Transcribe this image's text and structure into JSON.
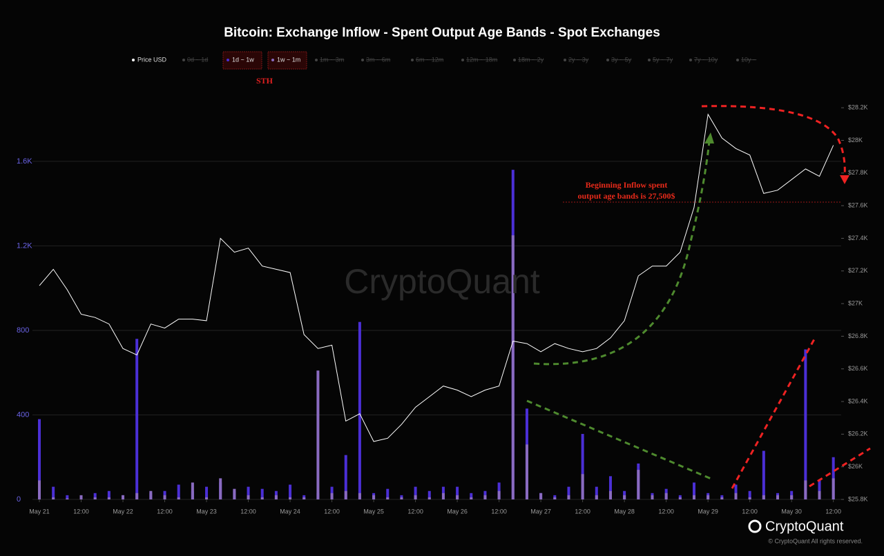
{
  "chart_data": {
    "type": "bar",
    "title": "Bitcoin: Exchange Inflow - Spent Output Age Bands - Spot Exchanges",
    "x": [
      "May 21 00:00",
      "May 21 04:00",
      "May 21 08:00",
      "May 21 12:00",
      "May 21 16:00",
      "May 21 20:00",
      "May 22 00:00",
      "May 22 04:00",
      "May 22 08:00",
      "May 22 12:00",
      "May 22 16:00",
      "May 22 20:00",
      "May 23 00:00",
      "May 23 04:00",
      "May 23 08:00",
      "May 23 12:00",
      "May 23 16:00",
      "May 23 20:00",
      "May 24 00:00",
      "May 24 04:00",
      "May 24 08:00",
      "May 24 12:00",
      "May 24 16:00",
      "May 24 20:00",
      "May 25 00:00",
      "May 25 04:00",
      "May 25 08:00",
      "May 25 12:00",
      "May 25 16:00",
      "May 25 20:00",
      "May 26 00:00",
      "May 26 04:00",
      "May 26 08:00",
      "May 26 12:00",
      "May 26 16:00",
      "May 26 20:00",
      "May 27 00:00",
      "May 27 04:00",
      "May 27 08:00",
      "May 27 12:00",
      "May 27 16:00",
      "May 27 20:00",
      "May 28 00:00",
      "May 28 04:00",
      "May 28 08:00",
      "May 28 12:00",
      "May 28 16:00",
      "May 28 20:00",
      "May 29 00:00",
      "May 29 04:00",
      "May 29 08:00",
      "May 29 12:00",
      "May 29 16:00",
      "May 29 20:00",
      "May 30 00:00",
      "May 30 04:00",
      "May 30 08:00",
      "May 30 12:00"
    ],
    "xticks": [
      {
        "value": "May 21 00:00",
        "label": "May 21"
      },
      {
        "value": "May 21 12:00",
        "label": "12:00"
      },
      {
        "value": "May 22 00:00",
        "label": "May 22"
      },
      {
        "value": "May 22 12:00",
        "label": "12:00"
      },
      {
        "value": "May 23 00:00",
        "label": "May 23"
      },
      {
        "value": "May 23 12:00",
        "label": "12:00"
      },
      {
        "value": "May 24 00:00",
        "label": "May 24"
      },
      {
        "value": "May 24 12:00",
        "label": "12:00"
      },
      {
        "value": "May 25 00:00",
        "label": "May 25"
      },
      {
        "value": "May 25 12:00",
        "label": "12:00"
      },
      {
        "value": "May 26 00:00",
        "label": "May 26"
      },
      {
        "value": "May 26 12:00",
        "label": "12:00"
      },
      {
        "value": "May 27 00:00",
        "label": "May 27"
      },
      {
        "value": "May 27 12:00",
        "label": "12:00"
      },
      {
        "value": "May 28 00:00",
        "label": "May 28"
      },
      {
        "value": "May 28 12:00",
        "label": "12:00"
      },
      {
        "value": "May 29 00:00",
        "label": "May 29"
      },
      {
        "value": "May 29 12:00",
        "label": "12:00"
      },
      {
        "value": "May 30 00:00",
        "label": "May 30"
      },
      {
        "value": "May 30 12:00",
        "label": "12:00"
      }
    ],
    "ylim": [
      0,
      1900
    ],
    "yticks": [
      0,
      400,
      800,
      {
        "value": 1200,
        "label": "1.2K"
      },
      {
        "value": 1600,
        "label": "1.6K"
      }
    ],
    "y2lim": [
      25800,
      28260
    ],
    "y2ticks": [
      {
        "value": 25800,
        "label": "$25.8K"
      },
      {
        "value": 26000,
        "label": "$26K"
      },
      {
        "value": 26200,
        "label": "$26.2K"
      },
      {
        "value": 26400,
        "label": "$26.4K"
      },
      {
        "value": 26600,
        "label": "$26.6K"
      },
      {
        "value": 26800,
        "label": "$26.8K"
      },
      {
        "value": 27000,
        "label": "$27K"
      },
      {
        "value": 27200,
        "label": "$27.2K"
      },
      {
        "value": 27400,
        "label": "$27.4K"
      },
      {
        "value": 27600,
        "label": "$27.6K"
      },
      {
        "value": 27800,
        "label": "$27.8K"
      },
      {
        "value": 28000,
        "label": "$28K"
      },
      {
        "value": 28200,
        "label": "$28.2K"
      }
    ],
    "grid": true,
    "series": [
      {
        "name": "Price USD",
        "type": "line",
        "axis": "y2",
        "color": "#ffffff",
        "values": [
          27110,
          27210,
          27085,
          26935,
          26915,
          26875,
          26725,
          26685,
          26875,
          26850,
          26905,
          26905,
          26895,
          27400,
          27315,
          27340,
          27230,
          27210,
          27190,
          26810,
          26725,
          26745,
          26280,
          26325,
          26155,
          26175,
          26260,
          26365,
          26430,
          26495,
          26470,
          26430,
          26470,
          26495,
          26770,
          26755,
          26705,
          26755,
          26725,
          26705,
          26725,
          26790,
          26895,
          27170,
          27230,
          27230,
          27315,
          27590,
          28160,
          28015,
          27950,
          27910,
          27675,
          27695,
          27760,
          27825,
          27780,
          27970
        ]
      },
      {
        "name": "1d ~ 1w",
        "type": "bar",
        "color": "#4b2fd6",
        "values": [
          380,
          60,
          20,
          10,
          30,
          40,
          20,
          760,
          30,
          40,
          70,
          40,
          60,
          80,
          40,
          60,
          50,
          40,
          70,
          20,
          30,
          60,
          210,
          840,
          30,
          50,
          20,
          60,
          40,
          60,
          60,
          30,
          40,
          80,
          1560,
          430,
          30,
          20,
          60,
          310,
          60,
          110,
          40,
          170,
          30,
          50,
          20,
          80,
          30,
          20,
          70,
          40,
          230,
          30,
          40,
          710,
          90,
          200
        ]
      },
      {
        "name": "1w ~ 1m",
        "type": "bar",
        "color": "#8a6bc0",
        "values": [
          90,
          10,
          5,
          20,
          10,
          10,
          20,
          30,
          40,
          20,
          10,
          80,
          10,
          100,
          50,
          20,
          10,
          20,
          10,
          10,
          610,
          30,
          40,
          30,
          20,
          10,
          10,
          20,
          10,
          30,
          20,
          10,
          20,
          40,
          1250,
          260,
          30,
          10,
          20,
          120,
          20,
          40,
          20,
          140,
          20,
          30,
          10,
          20,
          20,
          10,
          30,
          10,
          20,
          20,
          20,
          90,
          40,
          100
        ]
      }
    ],
    "legend_hidden": [
      "0d ~ 1d",
      "1m ~ 3m",
      "3m ~ 6m",
      "6m ~ 12m",
      "12m ~ 18m",
      "18m ~ 2y",
      "2y ~ 3y",
      "3y ~ 5y",
      "5y ~ 7y",
      "7y ~ 10y",
      "10y ~"
    ],
    "annotations": {
      "sth": "STH",
      "inflow_line1": "Beginning Inflow spent",
      "inflow_line2": "output age bands is 27,500$"
    },
    "watermark": "CryptoQuant",
    "brand": "CryptoQuant",
    "copyright": "© CryptoQuant All rights reserved."
  }
}
